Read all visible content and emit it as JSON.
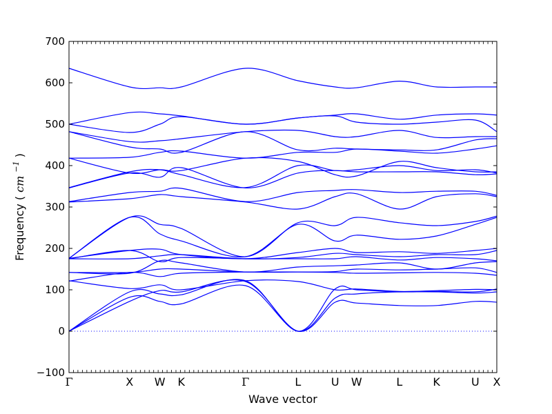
{
  "chart_data": {
    "type": "line",
    "xlabel": "Wave vector",
    "ylabel": "Frequency",
    "ylabel_unit_base": "cm",
    "ylabel_unit_exp": "−1",
    "ylim": [
      -100,
      700
    ],
    "yticks": [
      -100,
      0,
      100,
      200,
      300,
      400,
      500,
      600,
      700
    ],
    "grid": false,
    "line_color": "#0000ff",
    "zero_line": {
      "y": 0,
      "style": "dotted",
      "color": "#0000ff"
    },
    "kpoints": [
      {
        "label": "Γ",
        "x": 0.0
      },
      {
        "label": "X",
        "x": 1.0
      },
      {
        "label": "W",
        "x": 1.5
      },
      {
        "label": "K",
        "x": 1.854
      },
      {
        "label": "Γ",
        "x": 2.914
      },
      {
        "label": "L",
        "x": 3.78
      },
      {
        "label": "U",
        "x": 4.393
      },
      {
        "label": "W",
        "x": 4.747
      },
      {
        "label": "L",
        "x": 5.454
      },
      {
        "label": "K",
        "x": 6.067
      },
      {
        "label": "U",
        "x": 6.708
      },
      {
        "label": "X",
        "x": 7.062
      }
    ],
    "bands": [
      [
        0,
        72,
        98,
        95,
        120,
        0,
        70,
        68,
        62,
        62,
        72,
        70
      ],
      [
        0,
        82,
        72,
        66,
        110,
        0,
        80,
        90,
        95,
        95,
        92,
        95
      ],
      [
        0,
        95,
        90,
        88,
        122,
        0,
        102,
        100,
        95,
        96,
        95,
        102
      ],
      [
        122,
        103,
        112,
        100,
        122,
        120,
        100,
        102,
        96,
        98,
        101,
        100
      ],
      [
        121,
        142,
        132,
        140,
        143,
        143,
        142,
        140,
        141,
        142,
        140,
        135
      ],
      [
        142,
        142,
        150,
        150,
        143,
        143,
        144,
        150,
        148,
        150,
        153,
        142
      ],
      [
        142,
        140,
        170,
        165,
        143,
        155,
        158,
        160,
        165,
        150,
        165,
        168
      ],
      [
        175,
        195,
        168,
        178,
        175,
        175,
        175,
        180,
        172,
        178,
        175,
        170
      ],
      [
        175,
        175,
        182,
        185,
        175,
        178,
        188,
        185,
        180,
        185,
        185,
        195
      ],
      [
        176,
        195,
        198,
        185,
        175,
        190,
        200,
        190,
        192,
        188,
        195,
        200
      ],
      [
        176,
        275,
        235,
        218,
        180,
        258,
        218,
        232,
        222,
        230,
        258,
        275
      ],
      [
        176,
        275,
        258,
        248,
        180,
        262,
        255,
        275,
        262,
        255,
        265,
        278
      ],
      [
        312,
        320,
        330,
        325,
        312,
        295,
        325,
        332,
        295,
        325,
        332,
        325
      ],
      [
        313,
        335,
        338,
        345,
        313,
        335,
        340,
        342,
        335,
        338,
        338,
        328
      ],
      [
        346,
        382,
        372,
        395,
        346,
        382,
        388,
        385,
        385,
        385,
        378,
        380
      ],
      [
        347,
        385,
        390,
        378,
        347,
        400,
        388,
        390,
        400,
        388,
        390,
        382
      ],
      [
        418,
        382,
        390,
        388,
        418,
        410,
        378,
        375,
        410,
        395,
        385,
        385
      ],
      [
        418,
        420,
        432,
        435,
        418,
        432,
        432,
        440,
        435,
        430,
        440,
        448
      ],
      [
        482,
        445,
        440,
        432,
        482,
        438,
        442,
        440,
        438,
        438,
        462,
        465
      ],
      [
        482,
        458,
        460,
        465,
        482,
        485,
        470,
        470,
        485,
        468,
        470,
        470
      ],
      [
        500,
        480,
        500,
        518,
        500,
        515,
        520,
        505,
        500,
        505,
        510,
        482
      ],
      [
        500,
        528,
        525,
        520,
        500,
        515,
        522,
        525,
        512,
        522,
        525,
        522
      ],
      [
        635,
        590,
        588,
        590,
        635,
        605,
        590,
        588,
        604,
        590,
        590,
        590
      ]
    ]
  }
}
